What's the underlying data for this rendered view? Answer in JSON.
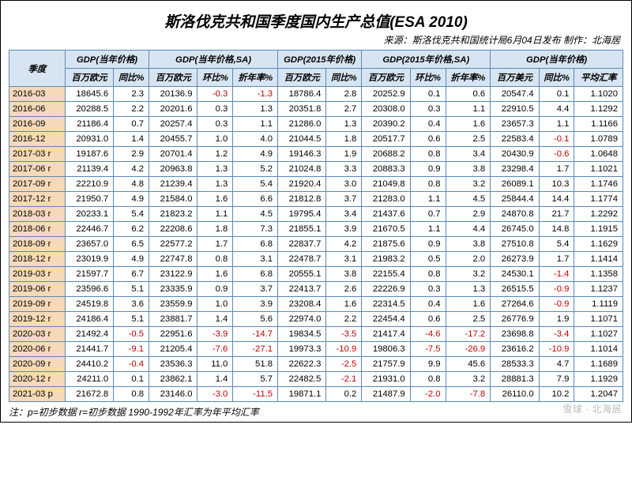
{
  "title": "斯洛伐克共和国季度国内生产总值(ESA 2010)",
  "source": "来源：斯洛伐克共和国统计局6月04日发布  制作：北海居",
  "footnote": "注：p=初步数据 r=初步数据 1990-1992年汇率为年平均汇率",
  "watermark": "雪球 · 北海居",
  "header": {
    "period": "季度",
    "g1": "GDP(当年价格)",
    "g2": "GDP(当年价格,SA)",
    "g3": "GDP(2015年价格)",
    "g4": "GDP(2015年价格,SA)",
    "g5": "GDP(当年价格)",
    "sub": {
      "mil_eur": "百万欧元",
      "yoy": "同比%",
      "qoq": "环比%",
      "ann": "折年率%",
      "mil_usd": "百万美元",
      "fx": "平均汇率"
    }
  },
  "col_widths": [
    "60",
    "52",
    "38",
    "52",
    "38",
    "48",
    "52",
    "38",
    "52",
    "38",
    "48",
    "52",
    "38",
    "52"
  ],
  "rows": [
    {
      "p": "2016-03",
      "a": "18645.6",
      "b": "2.3",
      "c": "20136.9",
      "d": "-0.3",
      "e": "-1.3",
      "f": "18786.4",
      "g": "2.8",
      "h": "20252.9",
      "i": "0.1",
      "j": "0.6",
      "k": "20547.4",
      "l": "0.1",
      "m": "1.1020"
    },
    {
      "p": "2016-06",
      "a": "20288.5",
      "b": "2.2",
      "c": "20201.6",
      "d": "0.3",
      "e": "1.3",
      "f": "20351.8",
      "g": "2.7",
      "h": "20308.0",
      "i": "0.3",
      "j": "1.1",
      "k": "22910.5",
      "l": "4.4",
      "m": "1.1292"
    },
    {
      "p": "2016-09",
      "a": "21186.4",
      "b": "0.7",
      "c": "20257.4",
      "d": "0.3",
      "e": "1.1",
      "f": "21286.0",
      "g": "1.3",
      "h": "20390.2",
      "i": "0.4",
      "j": "1.6",
      "k": "23657.3",
      "l": "1.1",
      "m": "1.1166"
    },
    {
      "p": "2016-12",
      "a": "20931.0",
      "b": "1.4",
      "c": "20455.7",
      "d": "1.0",
      "e": "4.0",
      "f": "21044.5",
      "g": "1.8",
      "h": "20517.7",
      "i": "0.6",
      "j": "2.5",
      "k": "22583.4",
      "l": "-0.1",
      "m": "1.0789"
    },
    {
      "p": "2017-03 r",
      "a": "19187.6",
      "b": "2.9",
      "c": "20701.4",
      "d": "1.2",
      "e": "4.9",
      "f": "19146.3",
      "g": "1.9",
      "h": "20688.2",
      "i": "0.8",
      "j": "3.4",
      "k": "20430.9",
      "l": "-0.6",
      "m": "1.0648"
    },
    {
      "p": "2017-06 r",
      "a": "21139.4",
      "b": "4.2",
      "c": "20963.8",
      "d": "1.3",
      "e": "5.2",
      "f": "21024.8",
      "g": "3.3",
      "h": "20883.3",
      "i": "0.9",
      "j": "3.8",
      "k": "23298.4",
      "l": "1.7",
      "m": "1.1021"
    },
    {
      "p": "2017-09 r",
      "a": "22210.9",
      "b": "4.8",
      "c": "21239.4",
      "d": "1.3",
      "e": "5.4",
      "f": "21920.4",
      "g": "3.0",
      "h": "21049.8",
      "i": "0.8",
      "j": "3.2",
      "k": "26089.1",
      "l": "10.3",
      "m": "1.1746"
    },
    {
      "p": "2017-12 r",
      "a": "21950.7",
      "b": "4.9",
      "c": "21584.0",
      "d": "1.6",
      "e": "6.6",
      "f": "21812.8",
      "g": "3.7",
      "h": "21283.0",
      "i": "1.1",
      "j": "4.5",
      "k": "25844.4",
      "l": "14.4",
      "m": "1.1774"
    },
    {
      "p": "2018-03 r",
      "a": "20233.1",
      "b": "5.4",
      "c": "21823.2",
      "d": "1.1",
      "e": "4.5",
      "f": "19795.4",
      "g": "3.4",
      "h": "21437.6",
      "i": "0.7",
      "j": "2.9",
      "k": "24870.8",
      "l": "21.7",
      "m": "1.2292"
    },
    {
      "p": "2018-06 r",
      "a": "22446.7",
      "b": "6.2",
      "c": "22208.6",
      "d": "1.8",
      "e": "7.3",
      "f": "21855.1",
      "g": "3.9",
      "h": "21670.5",
      "i": "1.1",
      "j": "4.4",
      "k": "26745.0",
      "l": "14.8",
      "m": "1.1915"
    },
    {
      "p": "2018-09 r",
      "a": "23657.0",
      "b": "6.5",
      "c": "22577.2",
      "d": "1.7",
      "e": "6.8",
      "f": "22837.7",
      "g": "4.2",
      "h": "21875.6",
      "i": "0.9",
      "j": "3.8",
      "k": "27510.8",
      "l": "5.4",
      "m": "1.1629"
    },
    {
      "p": "2018-12 r",
      "a": "23019.9",
      "b": "4.9",
      "c": "22747.8",
      "d": "0.8",
      "e": "3.1",
      "f": "22478.7",
      "g": "3.1",
      "h": "21983.2",
      "i": "0.5",
      "j": "2.0",
      "k": "26273.9",
      "l": "1.7",
      "m": "1.1414"
    },
    {
      "p": "2019-03 r",
      "a": "21597.7",
      "b": "6.7",
      "c": "23122.9",
      "d": "1.6",
      "e": "6.8",
      "f": "20555.1",
      "g": "3.8",
      "h": "22155.4",
      "i": "0.8",
      "j": "3.2",
      "k": "24530.1",
      "l": "-1.4",
      "m": "1.1358"
    },
    {
      "p": "2019-06 r",
      "a": "23596.6",
      "b": "5.1",
      "c": "23335.9",
      "d": "0.9",
      "e": "3.7",
      "f": "22413.7",
      "g": "2.6",
      "h": "22226.9",
      "i": "0.3",
      "j": "1.3",
      "k": "26515.5",
      "l": "-0.9",
      "m": "1.1237"
    },
    {
      "p": "2019-09 r",
      "a": "24519.8",
      "b": "3.6",
      "c": "23559.9",
      "d": "1.0",
      "e": "3.9",
      "f": "23208.4",
      "g": "1.6",
      "h": "22314.5",
      "i": "0.4",
      "j": "1.6",
      "k": "27264.6",
      "l": "-0.9",
      "m": "1.1119"
    },
    {
      "p": "2019-12 r",
      "a": "24186.4",
      "b": "5.1",
      "c": "23881.7",
      "d": "1.4",
      "e": "5.6",
      "f": "22974.0",
      "g": "2.2",
      "h": "22454.4",
      "i": "0.6",
      "j": "2.5",
      "k": "26776.9",
      "l": "1.9",
      "m": "1.1071"
    },
    {
      "p": "2020-03 r",
      "a": "21492.4",
      "b": "-0.5",
      "c": "22951.6",
      "d": "-3.9",
      "e": "-14.7",
      "f": "19834.5",
      "g": "-3.5",
      "h": "21417.4",
      "i": "-4.6",
      "j": "-17.2",
      "k": "23698.8",
      "l": "-3.4",
      "m": "1.1027"
    },
    {
      "p": "2020-06 r",
      "a": "21441.7",
      "b": "-9.1",
      "c": "21205.4",
      "d": "-7.6",
      "e": "-27.1",
      "f": "19973.3",
      "g": "-10.9",
      "h": "19806.3",
      "i": "-7.5",
      "j": "-26.9",
      "k": "23616.2",
      "l": "-10.9",
      "m": "1.1014"
    },
    {
      "p": "2020-09 r",
      "a": "24410.2",
      "b": "-0.4",
      "c": "23536.3",
      "d": "11.0",
      "e": "51.8",
      "f": "22622.3",
      "g": "-2.5",
      "h": "21757.9",
      "i": "9.9",
      "j": "45.6",
      "k": "28533.3",
      "l": "4.7",
      "m": "1.1689"
    },
    {
      "p": "2020-12 r",
      "a": "24211.0",
      "b": "0.1",
      "c": "23862.1",
      "d": "1.4",
      "e": "5.7",
      "f": "22482.5",
      "g": "-2.1",
      "h": "21931.0",
      "i": "0.8",
      "j": "3.2",
      "k": "28881.3",
      "l": "7.9",
      "m": "1.1929"
    },
    {
      "p": "2021-03 p",
      "a": "21672.8",
      "b": "0.8",
      "c": "23146.0",
      "d": "-3.0",
      "e": "-11.5",
      "f": "19871.1",
      "g": "0.2",
      "h": "21487.9",
      "i": "-2.0",
      "j": "-7.8",
      "k": "26110.0",
      "l": "10.2",
      "m": "1.2047"
    }
  ]
}
